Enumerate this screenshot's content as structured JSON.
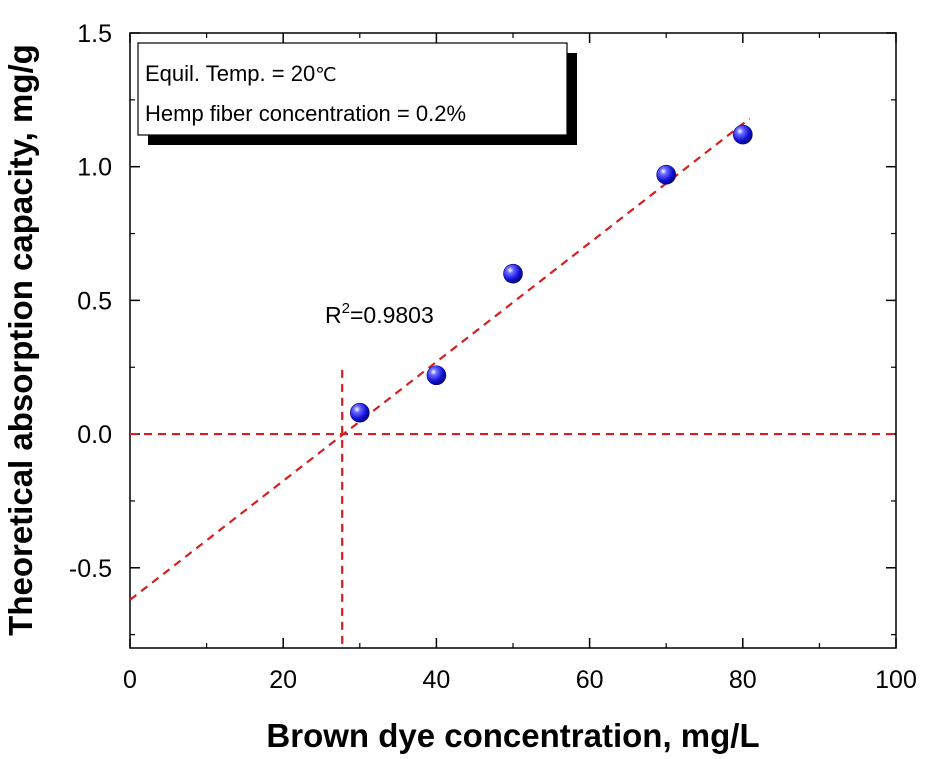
{
  "chart_data": {
    "type": "scatter",
    "xlabel": "Brown dye concentration, mg/L",
    "ylabel": "Theoretical absorption capacity, mg/g",
    "xlim": [
      0,
      100
    ],
    "ylim": [
      -0.8,
      1.5
    ],
    "x_ticks": [
      "0",
      "20",
      "40",
      "60",
      "80",
      "100"
    ],
    "y_ticks": [
      "-0.5",
      "0.0",
      "0.5",
      "1.0",
      "1.5"
    ],
    "x_tick_values": [
      0,
      20,
      40,
      60,
      80,
      100
    ],
    "y_tick_values": [
      -0.5,
      0.0,
      0.5,
      1.0,
      1.5
    ],
    "series": [
      {
        "x": [
          30,
          40,
          50,
          70,
          80
        ],
        "y": [
          0.08,
          0.22,
          0.6,
          0.97,
          1.12
        ],
        "color": "#1414e6"
      }
    ],
    "fit_line": {
      "x_start": 0,
      "y_start": -0.62,
      "x_end": 80.9,
      "y_end": 1.18,
      "color": "#d42020",
      "style": "dashed"
    },
    "reference_lines": {
      "horizontal_y": 0.0,
      "vertical_x": 27.7,
      "vertical_y_top": 0.24,
      "color": "#d42020"
    },
    "r2_label": {
      "prefix": "R",
      "sup": "2",
      "value": "=0.9803"
    },
    "legend_box": {
      "placement": "top-left",
      "line1_prefix": "Equil. Temp. = 20",
      "line1_unit": "℃",
      "line2": "Hemp fiber concentration = 0.2%"
    }
  }
}
